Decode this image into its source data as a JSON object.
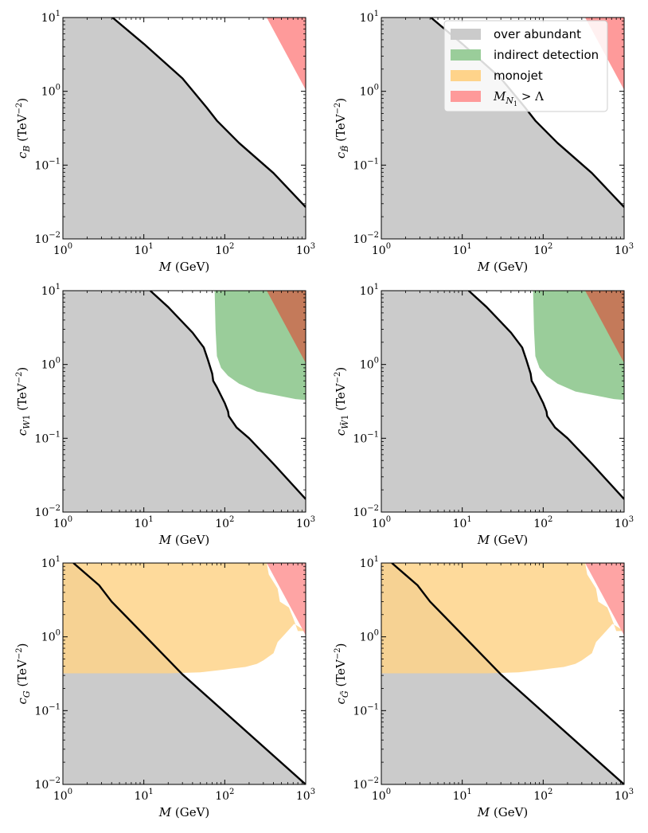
{
  "colors": {
    "over_abundant": "#cbcbcb",
    "indirect_detection": "#9acd9a",
    "monojet": "#fed38a",
    "mass_exceeds_cutoff": "#fe9a9a",
    "overlap_indirect_mass": "#c47a5a",
    "overlap_monojet_mass": "#fe7f4c",
    "overlap_abundant_monojet": "#d0b283",
    "boundary": "#000000"
  },
  "axes_common": {
    "xlabel": "M (GeV)",
    "xlim": [
      1,
      1000
    ],
    "ylim": [
      0.01,
      10
    ],
    "x_tick_exponents": [
      "0",
      "1",
      "2",
      "3"
    ],
    "y_tick_exponents": [
      "−2",
      "−1",
      "0",
      "1"
    ],
    "y_unit": "(TeV",
    "y_unit_exp": "−2",
    "tick_base": "10"
  },
  "legend": {
    "items": [
      {
        "label": "over abundant",
        "color_key": "over_abundant"
      },
      {
        "label": "indirect detection",
        "color_key": "indirect_detection"
      },
      {
        "label": "monojet",
        "color_key": "monojet"
      },
      {
        "label": "M",
        "sub": "N",
        "subsub": "1",
        "suffix": " > Λ",
        "color_key": "mass_exceeds_cutoff"
      }
    ]
  },
  "chart_data": [
    {
      "type": "area",
      "panel": "top-left",
      "ylabel": {
        "symbol": "c",
        "sub": "B"
      },
      "boundary_line": {
        "x": [
          4.1,
          10,
          30,
          60,
          80,
          150,
          400,
          1000
        ],
        "y": [
          10,
          4.4,
          1.5,
          0.6,
          0.4,
          0.2,
          0.078,
          0.027
        ]
      },
      "mass_region": {
        "x": [
          330,
          1000,
          1000
        ],
        "y": [
          10,
          10,
          1.05
        ]
      }
    },
    {
      "type": "area",
      "panel": "top-right",
      "ylabel": {
        "symbol": "c",
        "sub": "B",
        "tilde": true
      },
      "boundary_line": {
        "x": [
          4.1,
          10,
          30,
          60,
          80,
          150,
          400,
          1000
        ],
        "y": [
          10,
          4.4,
          1.5,
          0.6,
          0.4,
          0.2,
          0.078,
          0.027
        ]
      },
      "mass_region": {
        "x": [
          330,
          1000,
          1000
        ],
        "y": [
          10,
          10,
          1.05
        ]
      }
    },
    {
      "type": "area",
      "panel": "middle-left",
      "ylabel": {
        "symbol": "c",
        "sub": "W1"
      },
      "boundary_line": {
        "x": [
          12,
          20,
          40,
          55,
          62,
          70,
          72,
          80,
          100,
          110,
          112,
          140,
          200,
          400,
          1000
        ],
        "y": [
          10,
          6,
          2.7,
          1.7,
          1.15,
          0.75,
          0.6,
          0.49,
          0.3,
          0.23,
          0.2,
          0.14,
          0.1,
          0.045,
          0.015
        ]
      },
      "indirect_region": {
        "x": [
          75,
          1000,
          1000,
          750,
          500,
          250,
          150,
          110,
          90,
          80,
          77
        ],
        "y": [
          10,
          10,
          0.33,
          0.34,
          0.37,
          0.43,
          0.55,
          0.7,
          0.9,
          1.3,
          3
        ]
      },
      "mass_region": {
        "x": [
          330,
          1000,
          1000
        ],
        "y": [
          10,
          10,
          1.05
        ]
      }
    },
    {
      "type": "area",
      "panel": "middle-right",
      "ylabel": {
        "symbol": "c",
        "sub": "W1",
        "tilde": true
      },
      "boundary_line": {
        "x": [
          12,
          20,
          40,
          55,
          62,
          70,
          72,
          80,
          100,
          110,
          112,
          140,
          200,
          400,
          1000
        ],
        "y": [
          10,
          6,
          2.7,
          1.7,
          1.15,
          0.75,
          0.6,
          0.49,
          0.3,
          0.23,
          0.2,
          0.14,
          0.1,
          0.045,
          0.015
        ]
      },
      "indirect_region": {
        "x": [
          75,
          1000,
          1000,
          750,
          500,
          250,
          150,
          110,
          90,
          80,
          77
        ],
        "y": [
          10,
          10,
          0.33,
          0.34,
          0.37,
          0.43,
          0.55,
          0.7,
          0.9,
          1.3,
          3
        ]
      },
      "mass_region": {
        "x": [
          330,
          1000,
          1000
        ],
        "y": [
          10,
          10,
          1.05
        ]
      }
    },
    {
      "type": "area",
      "panel": "bottom-left",
      "ylabel": {
        "symbol": "c",
        "sub": "G"
      },
      "boundary_line": {
        "x": [
          1.35,
          2.8,
          4,
          7,
          30,
          1000
        ],
        "y": [
          10,
          5,
          3,
          1.6,
          0.31,
          0.01
        ]
      },
      "monojet_region": {
        "x": [
          1,
          330,
          350,
          450,
          480,
          620,
          700,
          800,
          1000,
          1000,
          720,
          600,
          450,
          400,
          300,
          250,
          180,
          120,
          100,
          50,
          20,
          1
        ],
        "y": [
          10,
          10,
          7,
          4.5,
          3,
          2.5,
          1.8,
          1.2,
          1.2,
          1.2,
          1.5,
          1.2,
          0.85,
          0.6,
          0.48,
          0.43,
          0.39,
          0.37,
          0.36,
          0.33,
          0.32,
          0.32
        ]
      },
      "mass_region": {
        "x": [
          330,
          1000,
          1000
        ],
        "y": [
          10,
          10,
          1.05
        ]
      }
    },
    {
      "type": "area",
      "panel": "bottom-right",
      "ylabel": {
        "symbol": "c",
        "sub": "G",
        "tilde": true
      },
      "boundary_line": {
        "x": [
          1.35,
          2.8,
          4,
          7,
          30,
          1000
        ],
        "y": [
          10,
          5,
          3,
          1.6,
          0.31,
          0.01
        ]
      },
      "monojet_region": {
        "x": [
          1,
          330,
          350,
          450,
          480,
          620,
          700,
          800,
          1000,
          1000,
          720,
          600,
          450,
          400,
          300,
          250,
          180,
          120,
          100,
          50,
          20,
          1
        ],
        "y": [
          10,
          10,
          7,
          4.5,
          3,
          2.5,
          1.8,
          1.2,
          1.2,
          1.2,
          1.5,
          1.2,
          0.85,
          0.6,
          0.48,
          0.43,
          0.39,
          0.37,
          0.36,
          0.33,
          0.32,
          0.32
        ]
      },
      "mass_region": {
        "x": [
          330,
          1000,
          1000
        ],
        "y": [
          10,
          10,
          1.05
        ]
      }
    }
  ]
}
